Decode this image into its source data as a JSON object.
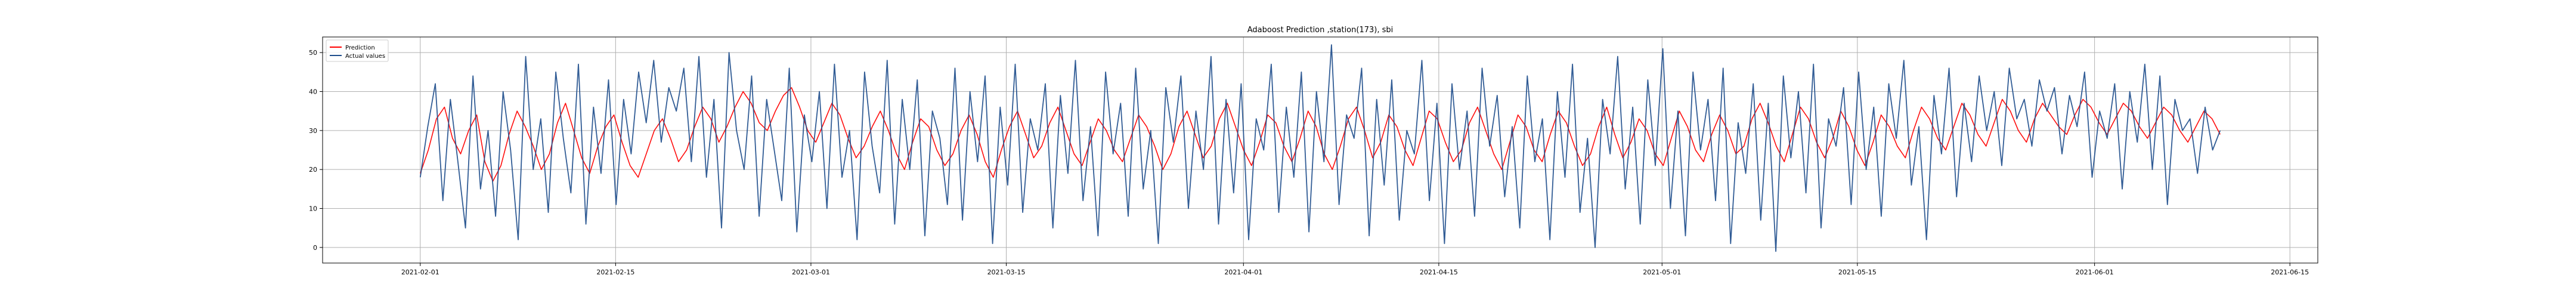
{
  "chart_data": {
    "type": "line",
    "title": "Adaboost Prediction ,station(173), sbi",
    "xlabel": "",
    "ylabel": "",
    "x_range": [
      "2021-01-25",
      "2021-06-17"
    ],
    "x_data_range": [
      "2021-02-01",
      "2021-06-10"
    ],
    "ylim": [
      -4,
      54
    ],
    "x_ticks": [
      "2021-02-01",
      "2021-02-15",
      "2021-03-01",
      "2021-03-15",
      "2021-04-01",
      "2021-04-15",
      "2021-05-01",
      "2021-05-15",
      "2021-06-01",
      "2021-06-15"
    ],
    "y_ticks": [
      0,
      10,
      20,
      30,
      40,
      50
    ],
    "grid": true,
    "legend_position": "top-left",
    "colors": {
      "prediction": "#ff0000",
      "actual": "#1f4e8c",
      "grid": "#b0b0b0",
      "axes": "#000000"
    },
    "sampling_note": "hourly series, values sampled approximately",
    "series": [
      {
        "name": "Prediction",
        "color": "#ff0000",
        "values": [
          19,
          25,
          33,
          36,
          28,
          24,
          30,
          34,
          22,
          17,
          21,
          29,
          35,
          31,
          26,
          20,
          24,
          32,
          37,
          30,
          23,
          19,
          26,
          31,
          34,
          27,
          21,
          18,
          24,
          30,
          33,
          28,
          22,
          25,
          31,
          36,
          33,
          27,
          31,
          36,
          40,
          37,
          32,
          30,
          35,
          39,
          41,
          36,
          30,
          27,
          32,
          37,
          34,
          28,
          23,
          26,
          31,
          35,
          30,
          24,
          20,
          27,
          33,
          31,
          25,
          21,
          24,
          30,
          34,
          29,
          22,
          18,
          25,
          31,
          35,
          29,
          23,
          26,
          32,
          36,
          30,
          24,
          21,
          27,
          33,
          30,
          25,
          22,
          28,
          34,
          31,
          26,
          20,
          24,
          31,
          35,
          29,
          23,
          26,
          33,
          37,
          31,
          25,
          21,
          27,
          34,
          32,
          26,
          22,
          28,
          35,
          31,
          24,
          20,
          26,
          33,
          36,
          30,
          23,
          27,
          34,
          31,
          25,
          21,
          28,
          35,
          33,
          27,
          22,
          25,
          32,
          36,
          30,
          24,
          20,
          27,
          34,
          31,
          25,
          22,
          29,
          35,
          32,
          26,
          21,
          24,
          31,
          36,
          29,
          23,
          27,
          33,
          30,
          24,
          21,
          28,
          35,
          31,
          25,
          22,
          29,
          34,
          30,
          24,
          26,
          33,
          37,
          32,
          26,
          22,
          29,
          36,
          33,
          27,
          23,
          28,
          35,
          31,
          25,
          21,
          27,
          34,
          31,
          26,
          23,
          30,
          36,
          33,
          28,
          25,
          31,
          37,
          34,
          29,
          26,
          32,
          38,
          35,
          30,
          27,
          33,
          37,
          34,
          31,
          29,
          34,
          38,
          36,
          32,
          29,
          33,
          37,
          35,
          31,
          28,
          32,
          36,
          34,
          30,
          27,
          31,
          35,
          33,
          29
        ],
        "start": "2021-02-01",
        "end": "2021-06-10"
      },
      {
        "name": "Actual values",
        "color": "#1f4e8c",
        "values": [
          18,
          31,
          42,
          12,
          38,
          22,
          5,
          44,
          15,
          30,
          8,
          40,
          25,
          2,
          49,
          20,
          33,
          9,
          45,
          28,
          14,
          47,
          6,
          36,
          19,
          43,
          11,
          38,
          24,
          45,
          32,
          48,
          27,
          41,
          35,
          46,
          22,
          49,
          18,
          38,
          5,
          50,
          30,
          20,
          44,
          8,
          38,
          25,
          12,
          46,
          4,
          34,
          22,
          40,
          10,
          47,
          18,
          30,
          2,
          45,
          26,
          14,
          48,
          6,
          38,
          20,
          43,
          3,
          35,
          28,
          11,
          46,
          7,
          40,
          22,
          44,
          1,
          36,
          16,
          47,
          9,
          33,
          25,
          42,
          5,
          39,
          19,
          48,
          12,
          31,
          3,
          45,
          24,
          37,
          8,
          46,
          15,
          30,
          1,
          41,
          27,
          44,
          10,
          35,
          20,
          49,
          6,
          38,
          14,
          42,
          2,
          33,
          25,
          47,
          9,
          36,
          18,
          45,
          4,
          40,
          22,
          52,
          11,
          34,
          28,
          46,
          3,
          38,
          16,
          43,
          7,
          30,
          24,
          48,
          12,
          37,
          1,
          42,
          20,
          35,
          8,
          46,
          26,
          39,
          13,
          31,
          5,
          44,
          22,
          33,
          2,
          40,
          18,
          47,
          9,
          28,
          0,
          38,
          24,
          49,
          15,
          36,
          6,
          43,
          21,
          51,
          10,
          35,
          3,
          45,
          25,
          38,
          12,
          46,
          1,
          32,
          19,
          42,
          7,
          37,
          -1,
          44,
          23,
          40,
          14,
          47,
          5,
          33,
          26,
          41,
          11,
          45,
          20,
          36,
          8,
          42,
          28,
          48,
          16,
          31,
          2,
          39,
          24,
          46,
          13,
          37,
          22,
          44,
          30,
          40,
          21,
          46,
          33,
          38,
          26,
          43,
          35,
          41,
          24,
          39,
          31,
          45,
          18,
          35,
          28,
          42,
          15,
          40,
          27,
          47,
          20,
          44,
          11,
          38,
          30,
          33,
          19,
          36,
          25,
          30
        ],
        "start": "2021-02-01",
        "end": "2021-06-10"
      }
    ]
  }
}
